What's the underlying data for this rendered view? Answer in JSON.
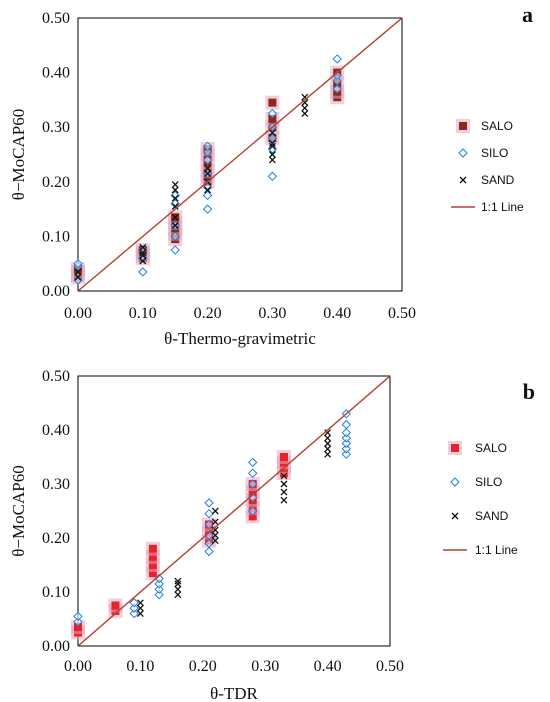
{
  "chart_data": [
    {
      "type": "scatter",
      "panel_label": "a",
      "xlabel": "θ-Thermo-gravimetric",
      "ylabel": "θ−MoCAP60",
      "xlim": [
        0,
        0.5
      ],
      "ylim": [
        0,
        0.5
      ],
      "x_ticks": [
        "0.00",
        "0.10",
        "0.20",
        "0.30",
        "0.40",
        "0.50"
      ],
      "y_ticks": [
        "0.00",
        "0.10",
        "0.20",
        "0.30",
        "0.40",
        "0.50"
      ],
      "grid": false,
      "legend_position": "right",
      "series": [
        {
          "name": "SALO",
          "marker": "square",
          "color": "#8b2a1c",
          "halo": "#e8a6c0",
          "points": [
            [
              0.0,
              0.025
            ],
            [
              0.0,
              0.03
            ],
            [
              0.0,
              0.035
            ],
            [
              0.0,
              0.04
            ],
            [
              0.1,
              0.06
            ],
            [
              0.1,
              0.065
            ],
            [
              0.1,
              0.07
            ],
            [
              0.1,
              0.075
            ],
            [
              0.15,
              0.095
            ],
            [
              0.15,
              0.105
            ],
            [
              0.15,
              0.115
            ],
            [
              0.15,
              0.125
            ],
            [
              0.15,
              0.135
            ],
            [
              0.2,
              0.2
            ],
            [
              0.2,
              0.21
            ],
            [
              0.2,
              0.22
            ],
            [
              0.2,
              0.235
            ],
            [
              0.2,
              0.25
            ],
            [
              0.2,
              0.26
            ],
            [
              0.3,
              0.28
            ],
            [
              0.3,
              0.3
            ],
            [
              0.3,
              0.315
            ],
            [
              0.3,
              0.345
            ],
            [
              0.4,
              0.355
            ],
            [
              0.4,
              0.365
            ],
            [
              0.4,
              0.38
            ],
            [
              0.4,
              0.4
            ]
          ]
        },
        {
          "name": "SILO",
          "marker": "diamond",
          "color": "#1e7fe0",
          "points": [
            [
              0.0,
              0.02
            ],
            [
              0.0,
              0.045
            ],
            [
              0.0,
              0.05
            ],
            [
              0.1,
              0.035
            ],
            [
              0.1,
              0.06
            ],
            [
              0.1,
              0.075
            ],
            [
              0.15,
              0.075
            ],
            [
              0.15,
              0.1
            ],
            [
              0.15,
              0.12
            ],
            [
              0.15,
              0.16
            ],
            [
              0.15,
              0.175
            ],
            [
              0.2,
              0.15
            ],
            [
              0.2,
              0.175
            ],
            [
              0.2,
              0.19
            ],
            [
              0.2,
              0.215
            ],
            [
              0.2,
              0.24
            ],
            [
              0.2,
              0.255
            ],
            [
              0.2,
              0.265
            ],
            [
              0.3,
              0.21
            ],
            [
              0.3,
              0.26
            ],
            [
              0.3,
              0.28
            ],
            [
              0.3,
              0.3
            ],
            [
              0.3,
              0.325
            ],
            [
              0.4,
              0.37
            ],
            [
              0.4,
              0.385
            ],
            [
              0.4,
              0.395
            ],
            [
              0.4,
              0.425
            ]
          ]
        },
        {
          "name": "SAND",
          "marker": "x",
          "color": "#111111",
          "points": [
            [
              0.0,
              0.025
            ],
            [
              0.0,
              0.035
            ],
            [
              0.1,
              0.055
            ],
            [
              0.1,
              0.065
            ],
            [
              0.1,
              0.07
            ],
            [
              0.1,
              0.08
            ],
            [
              0.15,
              0.12
            ],
            [
              0.15,
              0.135
            ],
            [
              0.15,
              0.155
            ],
            [
              0.15,
              0.17
            ],
            [
              0.15,
              0.185
            ],
            [
              0.15,
              0.195
            ],
            [
              0.2,
              0.185
            ],
            [
              0.2,
              0.2
            ],
            [
              0.2,
              0.215
            ],
            [
              0.2,
              0.225
            ],
            [
              0.3,
              0.24
            ],
            [
              0.3,
              0.25
            ],
            [
              0.3,
              0.265
            ],
            [
              0.3,
              0.27
            ],
            [
              0.3,
              0.29
            ],
            [
              0.35,
              0.325
            ],
            [
              0.35,
              0.335
            ],
            [
              0.35,
              0.345
            ],
            [
              0.35,
              0.355
            ]
          ]
        },
        {
          "name": "1:1 Line",
          "type": "line",
          "color": "#b5412e",
          "points": [
            [
              0,
              0
            ],
            [
              0.5,
              0.5
            ]
          ]
        }
      ]
    },
    {
      "type": "scatter",
      "panel_label": "b",
      "xlabel": "θ-TDR",
      "ylabel": "θ−MoCAP60",
      "xlim": [
        0,
        0.5
      ],
      "ylim": [
        0,
        0.5
      ],
      "x_ticks": [
        "0.00",
        "0.10",
        "0.20",
        "0.30",
        "0.40",
        "0.50"
      ],
      "y_ticks": [
        "0.00",
        "0.10",
        "0.20",
        "0.30",
        "0.40",
        "0.50"
      ],
      "grid": false,
      "legend_position": "right",
      "series": [
        {
          "name": "SALO",
          "marker": "square",
          "color": "#e4232a",
          "halo": "#e8a6c0",
          "points": [
            [
              0.0,
              0.025
            ],
            [
              0.0,
              0.035
            ],
            [
              0.06,
              0.065
            ],
            [
              0.06,
              0.075
            ],
            [
              0.12,
              0.135
            ],
            [
              0.12,
              0.15
            ],
            [
              0.12,
              0.165
            ],
            [
              0.12,
              0.18
            ],
            [
              0.21,
              0.195
            ],
            [
              0.21,
              0.21
            ],
            [
              0.21,
              0.225
            ],
            [
              0.28,
              0.24
            ],
            [
              0.28,
              0.255
            ],
            [
              0.28,
              0.27
            ],
            [
              0.28,
              0.285
            ],
            [
              0.28,
              0.3
            ],
            [
              0.33,
              0.32
            ],
            [
              0.33,
              0.33
            ],
            [
              0.33,
              0.34
            ],
            [
              0.33,
              0.35
            ]
          ]
        },
        {
          "name": "SILO",
          "marker": "diamond",
          "color": "#1e7fe0",
          "points": [
            [
              0.0,
              0.045
            ],
            [
              0.0,
              0.055
            ],
            [
              0.09,
              0.06
            ],
            [
              0.09,
              0.07
            ],
            [
              0.09,
              0.08
            ],
            [
              0.13,
              0.095
            ],
            [
              0.13,
              0.105
            ],
            [
              0.13,
              0.115
            ],
            [
              0.13,
              0.125
            ],
            [
              0.21,
              0.175
            ],
            [
              0.21,
              0.19
            ],
            [
              0.21,
              0.205
            ],
            [
              0.21,
              0.225
            ],
            [
              0.21,
              0.245
            ],
            [
              0.21,
              0.265
            ],
            [
              0.28,
              0.25
            ],
            [
              0.28,
              0.275
            ],
            [
              0.28,
              0.3
            ],
            [
              0.28,
              0.32
            ],
            [
              0.28,
              0.34
            ],
            [
              0.43,
              0.355
            ],
            [
              0.43,
              0.365
            ],
            [
              0.43,
              0.375
            ],
            [
              0.43,
              0.385
            ],
            [
              0.43,
              0.395
            ],
            [
              0.43,
              0.41
            ],
            [
              0.43,
              0.43
            ]
          ]
        },
        {
          "name": "SAND",
          "marker": "x",
          "color": "#111111",
          "points": [
            [
              0.1,
              0.06
            ],
            [
              0.1,
              0.07
            ],
            [
              0.1,
              0.08
            ],
            [
              0.16,
              0.095
            ],
            [
              0.16,
              0.105
            ],
            [
              0.16,
              0.115
            ],
            [
              0.16,
              0.12
            ],
            [
              0.22,
              0.195
            ],
            [
              0.22,
              0.205
            ],
            [
              0.22,
              0.215
            ],
            [
              0.22,
              0.23
            ],
            [
              0.22,
              0.25
            ],
            [
              0.33,
              0.27
            ],
            [
              0.33,
              0.285
            ],
            [
              0.33,
              0.3
            ],
            [
              0.33,
              0.315
            ],
            [
              0.4,
              0.355
            ],
            [
              0.4,
              0.365
            ],
            [
              0.4,
              0.375
            ],
            [
              0.4,
              0.385
            ],
            [
              0.4,
              0.395
            ]
          ]
        },
        {
          "name": "1:1 Line",
          "type": "line",
          "color": "#b5412e",
          "points": [
            [
              0,
              0
            ],
            [
              0.5,
              0.5
            ]
          ]
        }
      ]
    }
  ]
}
